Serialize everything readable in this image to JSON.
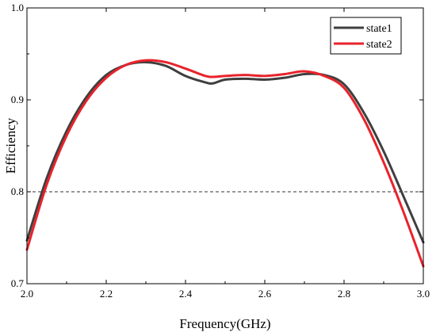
{
  "chart_data": {
    "type": "line",
    "title": "",
    "xlabel": "Frequency(GHz)",
    "ylabel": "Efficiency",
    "xlim": [
      2.0,
      3.0
    ],
    "ylim": [
      0.7,
      1.0
    ],
    "xticks": [
      "2.0",
      "2.2",
      "2.4",
      "2.6",
      "2.8",
      "3.0"
    ],
    "yticks": [
      "0.7",
      "0.8",
      "0.9",
      "1.0"
    ],
    "grid": false,
    "legend_position": "top-right",
    "reference_line": {
      "y": 0.8,
      "style": "dashed",
      "color": "#333333"
    },
    "series": [
      {
        "name": "state1",
        "color": "#3f3f3f",
        "x": [
          2.0,
          2.05,
          2.1,
          2.15,
          2.2,
          2.25,
          2.3,
          2.35,
          2.4,
          2.45,
          2.47,
          2.5,
          2.55,
          2.6,
          2.65,
          2.7,
          2.75,
          2.8,
          2.85,
          2.9,
          2.95,
          3.0
        ],
        "values": [
          0.747,
          0.815,
          0.866,
          0.903,
          0.927,
          0.938,
          0.941,
          0.937,
          0.926,
          0.919,
          0.918,
          0.922,
          0.923,
          0.922,
          0.924,
          0.928,
          0.927,
          0.917,
          0.886,
          0.844,
          0.795,
          0.745
        ]
      },
      {
        "name": "state2",
        "color": "#e8232b",
        "x": [
          2.0,
          2.05,
          2.1,
          2.15,
          2.2,
          2.25,
          2.3,
          2.35,
          2.4,
          2.45,
          2.47,
          2.5,
          2.55,
          2.6,
          2.65,
          2.7,
          2.75,
          2.8,
          2.85,
          2.9,
          2.95,
          3.0
        ],
        "values": [
          0.737,
          0.808,
          0.861,
          0.899,
          0.924,
          0.938,
          0.943,
          0.941,
          0.934,
          0.926,
          0.925,
          0.926,
          0.927,
          0.926,
          0.928,
          0.931,
          0.926,
          0.913,
          0.879,
          0.832,
          0.778,
          0.719
        ]
      }
    ]
  }
}
